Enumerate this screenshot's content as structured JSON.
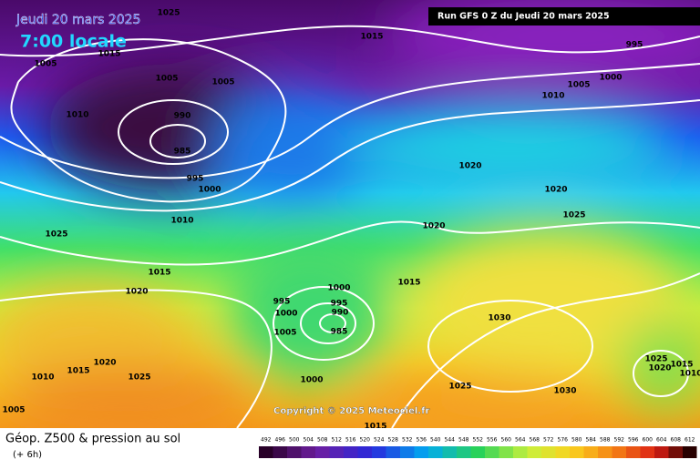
{
  "header": {
    "date": "Jeudi 20 mars 2025",
    "time": "7:00 locale",
    "run": "Run GFS 0 Z du Jeudi 20 mars 2025"
  },
  "copyright": "Copyright © 2025 Meteociel.fr",
  "footer": {
    "title": "Géop. Z500 & pression au sol",
    "offset": "(+ 6h)"
  },
  "legend": {
    "ticks": [
      492,
      496,
      500,
      504,
      508,
      512,
      516,
      520,
      524,
      528,
      532,
      536,
      540,
      544,
      548,
      552,
      556,
      560,
      564,
      568,
      572,
      576,
      580,
      584,
      588,
      592,
      596,
      600,
      604,
      608,
      612
    ]
  },
  "isobars": [
    1025,
    1015,
    1015,
    1005,
    1005,
    1005,
    1010,
    990,
    985,
    995,
    1000,
    1010,
    1025,
    1015,
    1020,
    995,
    1000,
    1000,
    995,
    990,
    985,
    1005,
    1000,
    1010,
    1015,
    1020,
    1025,
    1005,
    1015,
    995,
    1000,
    1005,
    1010,
    1020,
    1020,
    1025,
    1020,
    1015,
    1030,
    1025,
    1030,
    1025,
    1020,
    1015,
    1010
  ]
}
